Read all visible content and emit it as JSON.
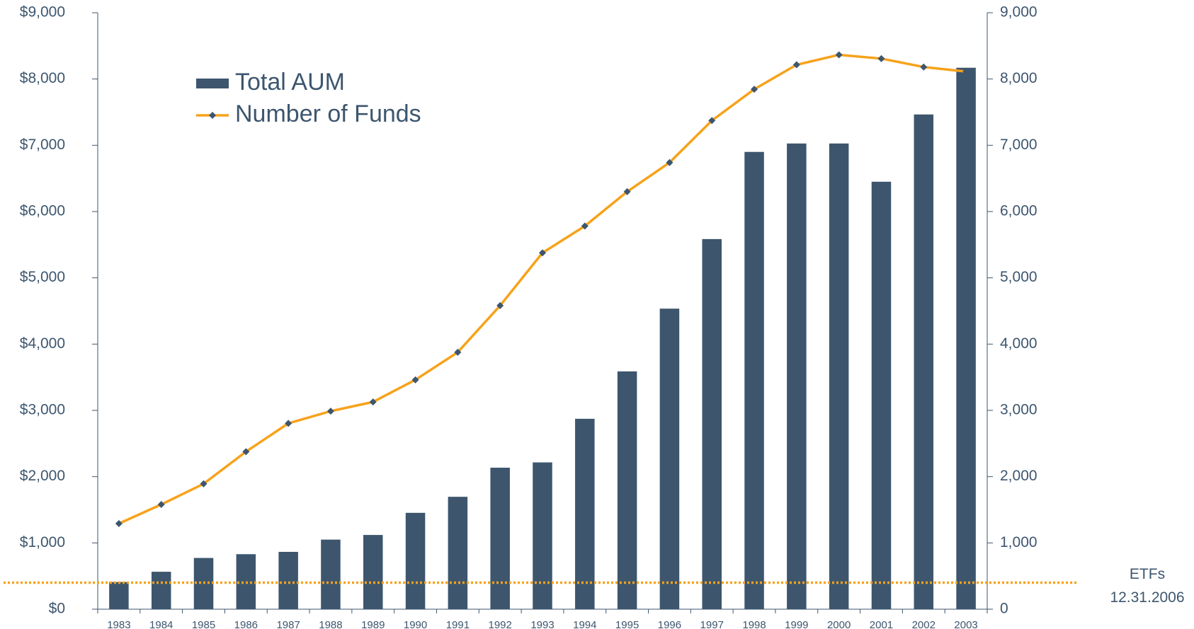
{
  "chart_data": {
    "type": "bar-line",
    "categories": [
      "1983",
      "1984",
      "1985",
      "1986",
      "1987",
      "1988",
      "1989",
      "1990",
      "1991",
      "1992",
      "1993",
      "1994",
      "1995",
      "1996",
      "1997",
      "1998",
      "1999",
      "2000",
      "2001",
      "2002",
      "2003"
    ],
    "series": [
      {
        "name": "Total AUM",
        "type": "bar",
        "color": "#3d566e",
        "axis": "y",
        "values": [
          410,
          565,
          773,
          830,
          865,
          1050,
          1120,
          1454,
          1696,
          2135,
          2215,
          2873,
          3588,
          4535,
          5585,
          6900,
          7027,
          7027,
          6450,
          7465,
          8170
        ]
      },
      {
        "name": "Number of Funds",
        "type": "line",
        "color": "#f7a21b",
        "marker_color": "#3d566e",
        "axis": "y2",
        "values": [
          1292,
          1580,
          1892,
          2377,
          2804,
          2988,
          3127,
          3461,
          3877,
          4581,
          5377,
          5781,
          6300,
          6739,
          7373,
          7846,
          8215,
          8365,
          8308,
          8181,
          8112
        ]
      }
    ],
    "ylim": [
      0,
      9000
    ],
    "yticks": [
      {
        "value": 0,
        "label": "$0"
      },
      {
        "value": 1000,
        "label": "$1,000"
      },
      {
        "value": 2000,
        "label": "$2,000"
      },
      {
        "value": 3000,
        "label": "$3,000"
      },
      {
        "value": 4000,
        "label": "$4,000"
      },
      {
        "value": 5000,
        "label": "$5,000"
      },
      {
        "value": 6000,
        "label": "$6,000"
      },
      {
        "value": 7000,
        "label": "$7,000"
      },
      {
        "value": 8000,
        "label": "$8,000"
      },
      {
        "value": 9000,
        "label": "$9,000"
      }
    ],
    "y2lim": [
      0,
      9000
    ],
    "y2ticks": [
      0,
      {
        "value": 1000,
        "label": "1,000"
      },
      {
        "value": 2000,
        "label": "2,000"
      },
      {
        "value": 3000,
        "label": "3,000"
      },
      {
        "value": 4000,
        "label": "4,000"
      },
      {
        "value": 5000,
        "label": "5,000"
      },
      {
        "value": 6000,
        "label": "6,000"
      },
      {
        "value": 7000,
        "label": "7,000"
      },
      {
        "value": 8000,
        "label": "8,000"
      },
      {
        "value": 9000,
        "label": "9,000"
      }
    ],
    "annotation": {
      "value": 400,
      "axis": "y",
      "color": "#f7a21b",
      "label": [
        "ETFs",
        "12.31.2006"
      ]
    },
    "legend": "upper left"
  }
}
